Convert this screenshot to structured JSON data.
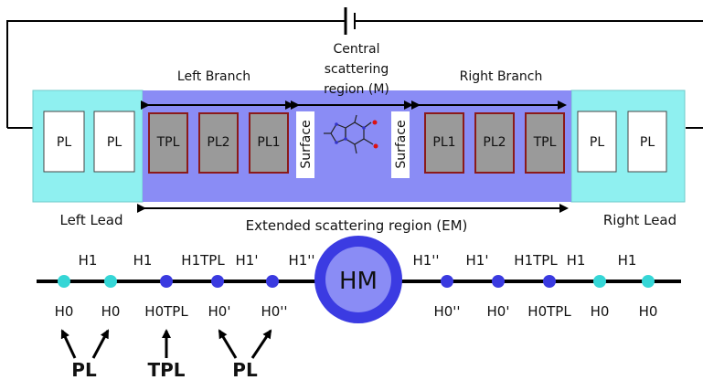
{
  "labels": {
    "central": [
      "Central",
      "scattering",
      "region (M)"
    ],
    "left_branch": "Left Branch",
    "right_branch": "Right Branch",
    "left_lead": "Left Lead",
    "right_lead": "Right Lead",
    "extended": "Extended scattering region (EM)",
    "surface": "Surface"
  },
  "boxes": {
    "pl": "PL",
    "tpl": "TPL",
    "pl2": "PL2",
    "pl1": "PL1"
  },
  "chain": {
    "top_labels": [
      "H1",
      "H1",
      "H1TPL",
      "H1'",
      "H1''",
      "H1''",
      "H1'",
      "H1TPL",
      "H1",
      "H1"
    ],
    "bottom_labels": [
      "H0",
      "H0",
      "H0TPL",
      "H0'",
      "H0''",
      "H0''",
      "H0'",
      "H0TPL",
      "H0",
      "H0"
    ],
    "center": "HM"
  },
  "groups": [
    "PL",
    "TPL",
    "PL"
  ],
  "colors": {
    "lead_bg": "#8ff0f0",
    "branch_bg": "#8a8cf5",
    "box_gray": "#9a9a9a",
    "box_border": "#8b1a1a",
    "node_cyan": "#35d6d6",
    "node_blue": "#3a3ae0",
    "hm_outer": "#3b3be2",
    "hm_inner": "#8a8cf5"
  }
}
